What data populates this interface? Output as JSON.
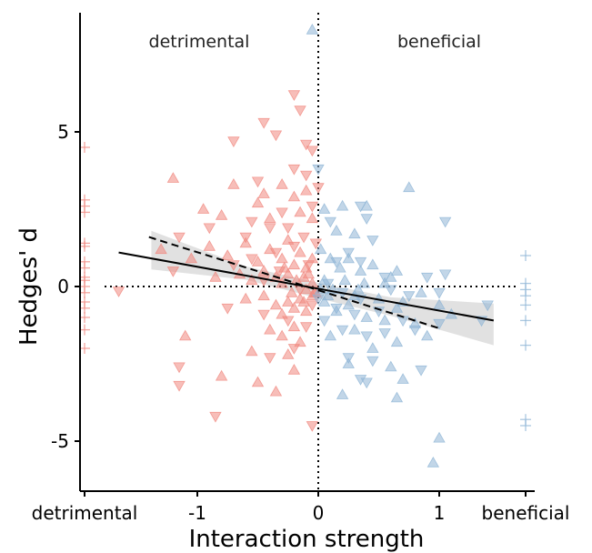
{
  "chart_data": {
    "type": "scatter",
    "xlabel": "Interaction strength",
    "ylabel": "Hedges' d",
    "xlim": [
      -1.75,
      1.6
    ],
    "ylim": [
      -6.6,
      8.8
    ],
    "x_ticks": [
      {
        "value": -1,
        "label": "-1"
      },
      {
        "value": 0,
        "label": "0"
      },
      {
        "value": 1,
        "label": "1"
      }
    ],
    "x_side_labels": {
      "left": "detrimental",
      "right": "beneficial"
    },
    "y_ticks": [
      {
        "value": 5,
        "label": "5"
      },
      {
        "value": 0,
        "label": "0"
      },
      {
        "value": -5,
        "label": "-5"
      }
    ],
    "region_labels": {
      "left": "detrimental",
      "right": "beneficial"
    },
    "reference_lines": {
      "x": 0,
      "y": 0,
      "style": "dotted"
    },
    "grid": false,
    "colors": {
      "negative_interaction": "#f08880",
      "positive_interaction": "#8fb5d6",
      "fit": "#000000",
      "ci_band": "#c8c8c8"
    },
    "fit_lines": [
      {
        "style": "solid",
        "x": [
          -1.65,
          1.45
        ],
        "y": [
          1.1,
          -1.1
        ],
        "ci_band": true
      },
      {
        "style": "dashed",
        "x": [
          -1.4,
          1.0
        ],
        "y": [
          1.6,
          -1.35
        ]
      }
    ],
    "series": [
      {
        "marker": "triangle-up",
        "color": "#f08880",
        "points": [
          [
            -1.2,
            3.5
          ],
          [
            -0.95,
            2.5
          ],
          [
            -0.8,
            2.3
          ],
          [
            -0.7,
            3.3
          ],
          [
            -0.5,
            2.7
          ],
          [
            -0.45,
            3.0
          ],
          [
            -0.4,
            2.2
          ],
          [
            -0.3,
            3.3
          ],
          [
            -0.2,
            2.9
          ],
          [
            -0.15,
            2.4
          ],
          [
            -0.1,
            3.1
          ],
          [
            -0.05,
            2.2
          ],
          [
            -1.3,
            1.2
          ],
          [
            -1.05,
            0.9
          ],
          [
            -0.9,
            1.3
          ],
          [
            -0.75,
            1.0
          ],
          [
            -0.6,
            1.4
          ],
          [
            -0.5,
            0.8
          ],
          [
            -0.4,
            1.2
          ],
          [
            -0.3,
            0.9
          ],
          [
            -0.25,
            1.5
          ],
          [
            -0.2,
            0.7
          ],
          [
            -0.15,
            1.1
          ],
          [
            -0.1,
            0.6
          ],
          [
            -0.05,
            0.9
          ],
          [
            -0.85,
            0.3
          ],
          [
            -0.65,
            0.4
          ],
          [
            -0.55,
            0.2
          ],
          [
            -0.45,
            0.5
          ],
          [
            -0.35,
            0.3
          ],
          [
            -0.3,
            0.1
          ],
          [
            -0.25,
            0.4
          ],
          [
            -0.22,
            -0.2
          ],
          [
            -0.18,
            0.2
          ],
          [
            -0.12,
            0.3
          ],
          [
            -0.1,
            -0.1
          ],
          [
            -0.08,
            0.4
          ],
          [
            -0.05,
            0.1
          ],
          [
            -0.02,
            -0.2
          ],
          [
            -0.6,
            -0.4
          ],
          [
            -0.45,
            -0.3
          ],
          [
            -0.35,
            -0.6
          ],
          [
            -0.3,
            -0.9
          ],
          [
            -0.25,
            -0.5
          ],
          [
            -0.2,
            -0.7
          ],
          [
            -0.15,
            -0.4
          ],
          [
            -0.1,
            -0.8
          ],
          [
            -0.05,
            -0.3
          ],
          [
            -0.3,
            -1.6
          ],
          [
            -0.2,
            -1.3
          ],
          [
            -0.15,
            -1.8
          ],
          [
            -0.4,
            -1.4
          ],
          [
            -0.55,
            -2.1
          ],
          [
            -0.25,
            -2.2
          ],
          [
            -1.1,
            -1.6
          ],
          [
            -0.8,
            -2.9
          ],
          [
            -0.5,
            -3.1
          ],
          [
            -0.35,
            -3.4
          ],
          [
            -0.2,
            -2.7
          ],
          [
            -0.03,
            -0.2
          ],
          [
            -0.12,
            -0.5
          ],
          [
            -0.28,
            0.6
          ]
        ]
      },
      {
        "marker": "triangle-down",
        "color": "#f08880",
        "points": [
          [
            -0.7,
            4.7
          ],
          [
            -0.45,
            5.3
          ],
          [
            -0.35,
            4.9
          ],
          [
            -0.2,
            6.2
          ],
          [
            -0.15,
            5.7
          ],
          [
            -0.1,
            4.6
          ],
          [
            -0.05,
            4.4
          ],
          [
            -0.2,
            3.8
          ],
          [
            -0.1,
            3.6
          ],
          [
            -0.3,
            2.4
          ],
          [
            -0.55,
            2.1
          ],
          [
            -0.25,
            1.9
          ],
          [
            -0.05,
            2.6
          ],
          [
            0.0,
            3.2
          ],
          [
            -1.15,
            1.6
          ],
          [
            -0.9,
            1.9
          ],
          [
            -0.6,
            1.6
          ],
          [
            -0.4,
            1.9
          ],
          [
            -0.35,
            1.1
          ],
          [
            -0.2,
            1.3
          ],
          [
            -0.12,
            1.6
          ],
          [
            -0.02,
            1.4
          ],
          [
            -1.2,
            0.5
          ],
          [
            -0.7,
            0.7
          ],
          [
            -0.55,
            0.9
          ],
          [
            -0.45,
            0.2
          ],
          [
            -0.32,
            0.5
          ],
          [
            -0.15,
            -0.1
          ],
          [
            -0.08,
            0.7
          ],
          [
            -0.75,
            -0.7
          ],
          [
            -0.45,
            -0.9
          ],
          [
            -0.25,
            -1.1
          ],
          [
            -0.1,
            -1.3
          ],
          [
            -0.05,
            -0.6
          ],
          [
            -0.4,
            -2.3
          ],
          [
            -0.2,
            -2.0
          ],
          [
            -1.15,
            -2.6
          ],
          [
            -1.15,
            -3.2
          ],
          [
            -0.85,
            -4.2
          ],
          [
            -0.05,
            -4.5
          ],
          [
            -1.65,
            -0.15
          ],
          [
            -0.5,
            3.4
          ]
        ]
      },
      {
        "marker": "triangle-up",
        "color": "#8fb5d6",
        "points": [
          [
            -0.05,
            8.3
          ],
          [
            0.75,
            3.2
          ],
          [
            0.05,
            2.5
          ],
          [
            0.2,
            2.6
          ],
          [
            0.4,
            2.6
          ],
          [
            0.15,
            1.8
          ],
          [
            0.3,
            1.7
          ],
          [
            0.02,
            1.2
          ],
          [
            0.1,
            0.9
          ],
          [
            0.18,
            0.6
          ],
          [
            0.25,
            0.9
          ],
          [
            0.35,
            0.5
          ],
          [
            0.45,
            0.7
          ],
          [
            0.6,
            0.3
          ],
          [
            0.65,
            0.5
          ],
          [
            0.05,
            0.2
          ],
          [
            0.12,
            -0.1
          ],
          [
            0.22,
            0.2
          ],
          [
            0.3,
            -0.3
          ],
          [
            0.38,
            0.1
          ],
          [
            0.5,
            -0.4
          ],
          [
            0.55,
            0.1
          ],
          [
            0.7,
            -0.5
          ],
          [
            0.85,
            -0.2
          ],
          [
            1.0,
            -0.6
          ],
          [
            1.1,
            -0.9
          ],
          [
            0.05,
            -0.5
          ],
          [
            0.15,
            -0.8
          ],
          [
            0.25,
            -0.6
          ],
          [
            0.4,
            -1.0
          ],
          [
            0.55,
            -1.1
          ],
          [
            0.65,
            -0.7
          ],
          [
            0.8,
            -1.2
          ],
          [
            0.1,
            -1.6
          ],
          [
            0.3,
            -1.4
          ],
          [
            0.45,
            -2.0
          ],
          [
            0.65,
            -1.8
          ],
          [
            0.9,
            -1.6
          ],
          [
            0.25,
            -2.5
          ],
          [
            0.6,
            -2.6
          ],
          [
            0.7,
            -3.0
          ],
          [
            0.2,
            -3.5
          ],
          [
            0.65,
            -3.6
          ],
          [
            1.0,
            -4.9
          ],
          [
            0.95,
            -5.7
          ],
          [
            0.02,
            -0.1
          ],
          [
            0.08,
            -0.3
          ],
          [
            0.33,
            -0.1
          ]
        ]
      },
      {
        "marker": "triangle-down",
        "color": "#8fb5d6",
        "points": [
          [
            0.0,
            3.8
          ],
          [
            0.35,
            2.6
          ],
          [
            0.4,
            2.2
          ],
          [
            0.1,
            2.1
          ],
          [
            1.05,
            2.1
          ],
          [
            0.45,
            1.5
          ],
          [
            0.25,
            1.1
          ],
          [
            0.15,
            0.8
          ],
          [
            0.35,
            0.8
          ],
          [
            0.55,
            0.3
          ],
          [
            0.9,
            0.3
          ],
          [
            1.05,
            0.4
          ],
          [
            0.08,
            0.1
          ],
          [
            0.2,
            -0.2
          ],
          [
            0.35,
            -0.4
          ],
          [
            0.6,
            -0.1
          ],
          [
            0.75,
            -0.3
          ],
          [
            1.0,
            -0.2
          ],
          [
            1.4,
            -0.6
          ],
          [
            0.15,
            -0.7
          ],
          [
            0.3,
            -0.9
          ],
          [
            0.5,
            -0.8
          ],
          [
            0.7,
            -1.1
          ],
          [
            1.0,
            -1.2
          ],
          [
            1.35,
            -1.1
          ],
          [
            0.05,
            -1.1
          ],
          [
            0.2,
            -1.4
          ],
          [
            0.4,
            -1.6
          ],
          [
            0.55,
            -1.5
          ],
          [
            0.8,
            -1.4
          ],
          [
            0.25,
            -2.3
          ],
          [
            0.45,
            -2.4
          ],
          [
            0.35,
            -3.0
          ],
          [
            0.85,
            -2.7
          ],
          [
            0.4,
            -3.1
          ],
          [
            0.0,
            -0.4
          ]
        ]
      },
      {
        "marker": "plus",
        "color": "#f08880",
        "position": "left margin (detrimental)",
        "y_values": [
          4.5,
          2.8,
          2.6,
          2.4,
          1.4,
          1.3,
          0.8,
          0.6,
          0.3,
          0.2,
          0.0,
          -0.2,
          -0.5,
          -0.7,
          -1.0,
          -1.4,
          -2.0
        ]
      },
      {
        "marker": "plus",
        "color": "#8fb5d6",
        "position": "right margin (beneficial)",
        "y_values": [
          1.0,
          0.1,
          -0.1,
          -0.3,
          -0.6,
          -1.1,
          -1.9,
          -4.3,
          -4.5
        ]
      }
    ]
  }
}
